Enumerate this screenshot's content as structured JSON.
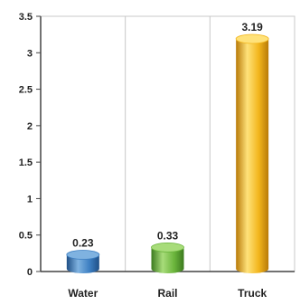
{
  "chart_data": {
    "type": "bar",
    "title": "",
    "xlabel": "",
    "ylabel": "",
    "categories": [
      "Water",
      "Rail",
      "Truck"
    ],
    "values": [
      0.23,
      0.33,
      3.19
    ],
    "data_labels": [
      "0.23",
      "0.33",
      "3.19"
    ],
    "ylim": [
      0,
      3.5
    ],
    "yticks": [
      "0",
      "0.5",
      "1",
      "1.5",
      "2",
      "2.5",
      "3",
      "3.5"
    ],
    "grid": "vertical",
    "legend": "none",
    "colors": {
      "Water": {
        "light": "#7fb2e0",
        "base": "#3d7fc2",
        "dark": "#1f4f86"
      },
      "Rail": {
        "light": "#a8dc7a",
        "base": "#6bb53c",
        "dark": "#3c7a1f"
      },
      "Truck": {
        "light": "#ffe27a",
        "base": "#f2b51c",
        "dark": "#b87a08"
      }
    }
  }
}
